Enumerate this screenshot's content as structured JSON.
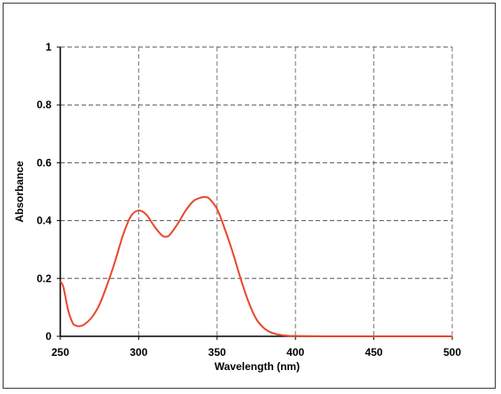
{
  "chart_data": {
    "type": "line",
    "title": "",
    "xlabel": "Wavelength (nm)",
    "ylabel": "Absorbance",
    "xlim": [
      250,
      500
    ],
    "ylim": [
      0,
      1
    ],
    "xticks": [
      250,
      300,
      350,
      400,
      450,
      500
    ],
    "yticks": [
      0,
      0.2,
      0.4,
      0.6,
      0.8,
      1
    ],
    "ytick_labels": [
      "0",
      "0.2",
      "0.4",
      "0.6",
      "0.8",
      "1"
    ],
    "grid": true,
    "legend": "none",
    "series": [
      {
        "color": "#e8472b",
        "x": [
          250,
          252,
          255,
          258,
          260,
          262,
          265,
          270,
          275,
          280,
          285,
          290,
          295,
          300,
          305,
          310,
          315,
          318,
          320,
          325,
          330,
          335,
          340,
          343,
          345,
          350,
          355,
          360,
          365,
          370,
          375,
          380,
          385,
          390,
          395,
          400,
          420,
          450,
          480,
          500
        ],
        "y": [
          0.19,
          0.17,
          0.09,
          0.045,
          0.037,
          0.035,
          0.04,
          0.065,
          0.11,
          0.18,
          0.26,
          0.35,
          0.415,
          0.435,
          0.42,
          0.38,
          0.348,
          0.345,
          0.352,
          0.39,
          0.435,
          0.468,
          0.48,
          0.481,
          0.476,
          0.44,
          0.37,
          0.29,
          0.2,
          0.12,
          0.06,
          0.028,
          0.012,
          0.005,
          0.002,
          0.001,
          0.0,
          0.0,
          0.0,
          0.0
        ]
      }
    ]
  }
}
